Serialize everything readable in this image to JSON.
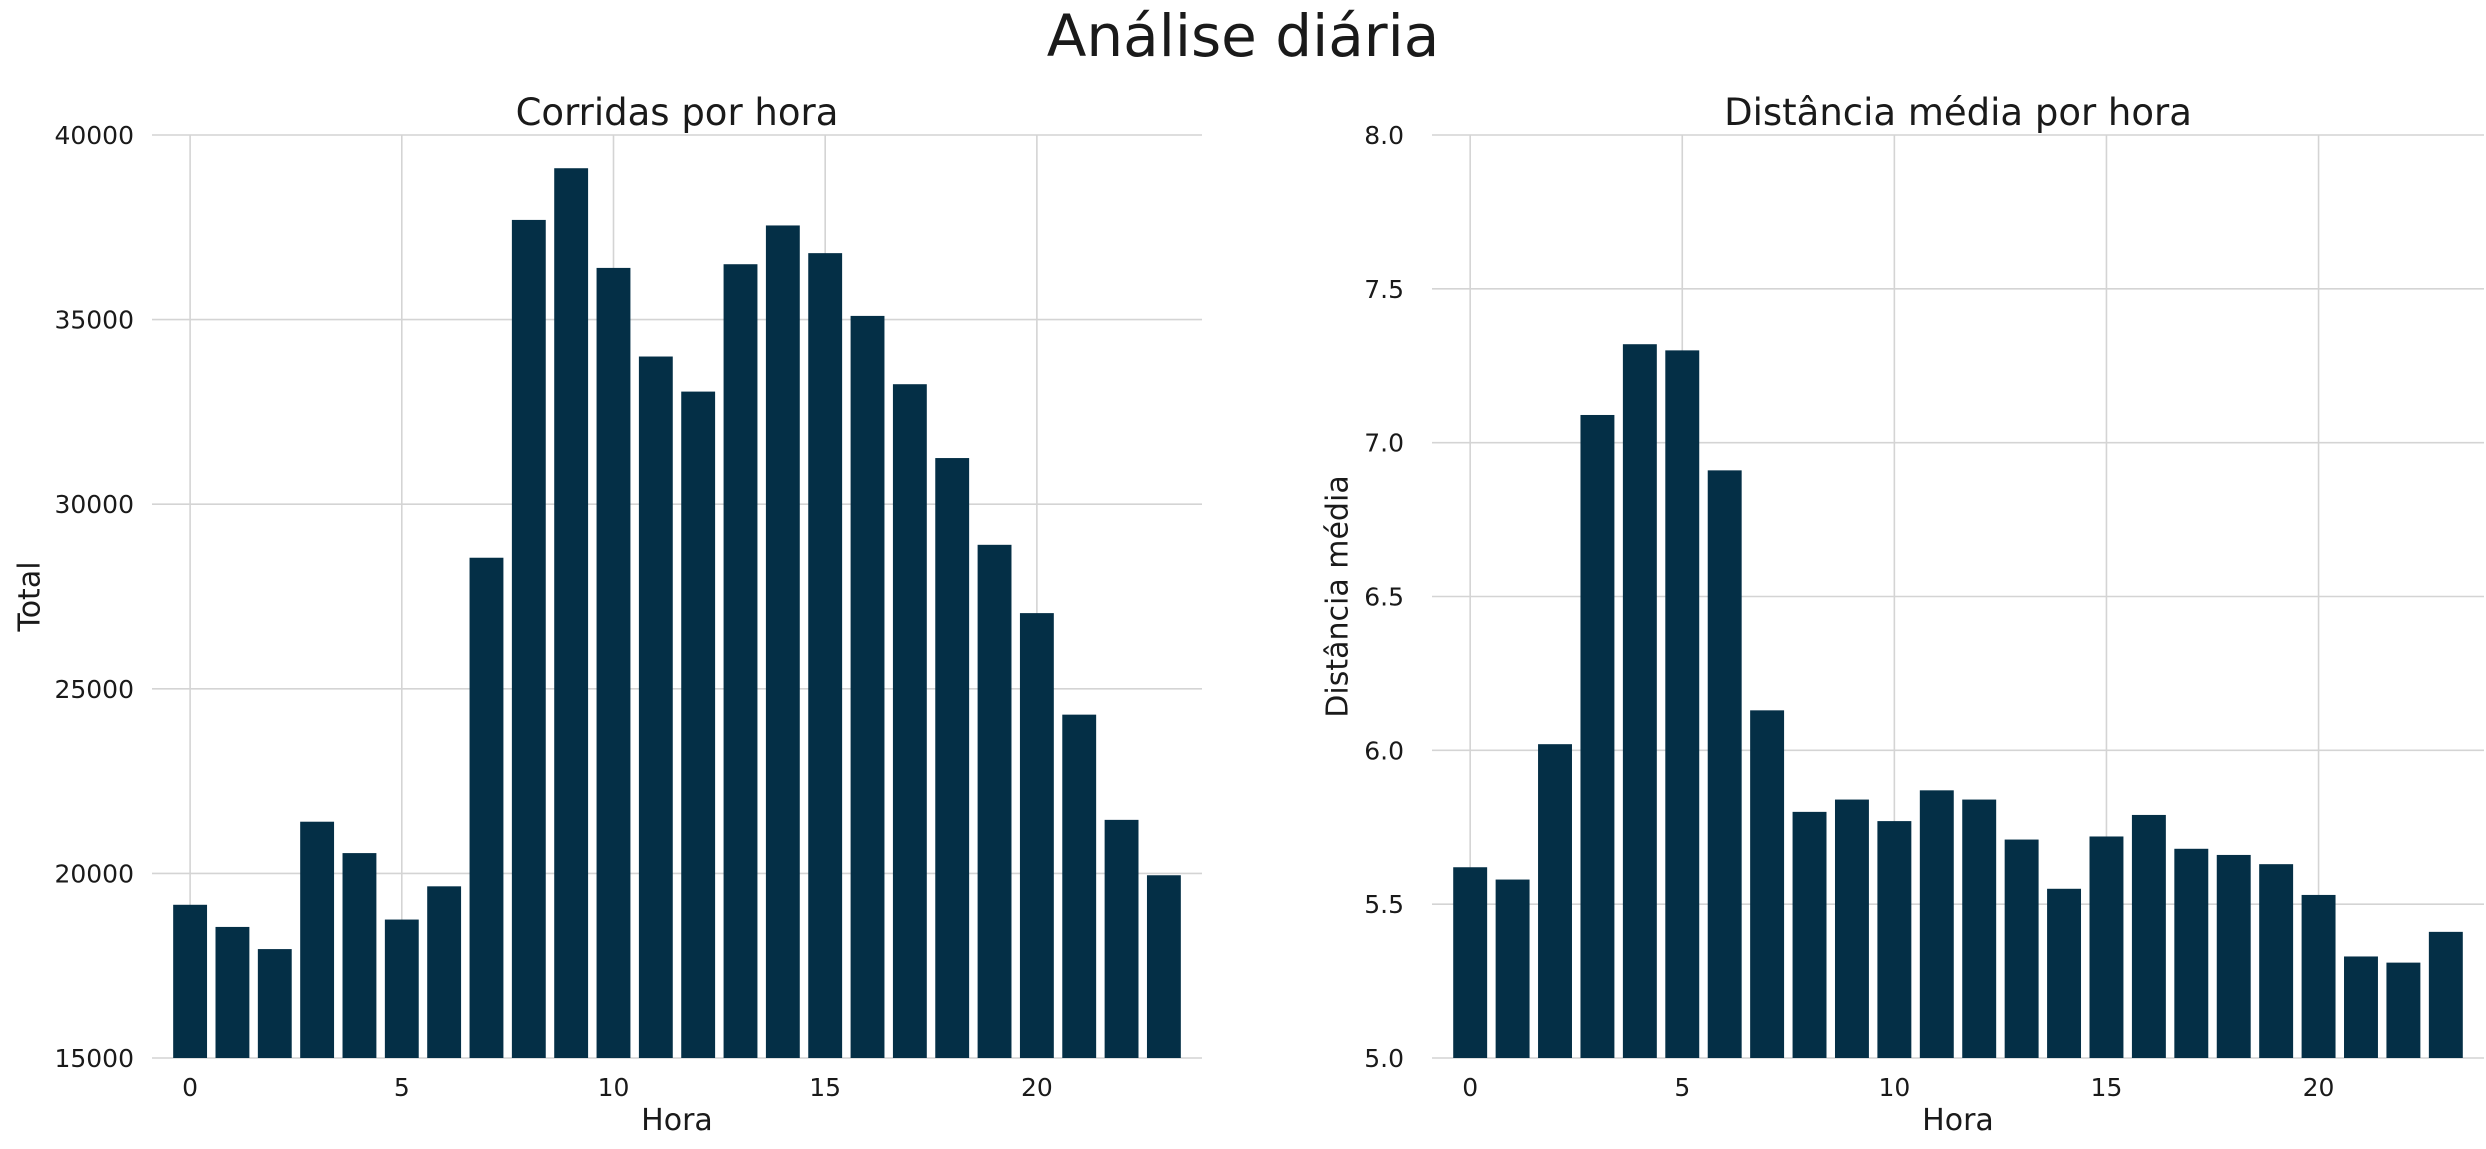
{
  "suptitle": "Análise diária",
  "chart_data": [
    {
      "type": "bar",
      "title": "Corridas por hora",
      "xlabel": "Hora",
      "ylabel": "Total",
      "x": [
        0,
        1,
        2,
        3,
        4,
        5,
        6,
        7,
        8,
        9,
        10,
        11,
        12,
        13,
        14,
        15,
        16,
        17,
        18,
        19,
        20,
        21,
        22,
        23
      ],
      "values": [
        19150,
        18550,
        17950,
        21400,
        20550,
        18750,
        19650,
        28550,
        37700,
        39100,
        36400,
        34000,
        33050,
        36500,
        37550,
        36800,
        35100,
        33250,
        31250,
        28900,
        27050,
        24300,
        21450,
        19950
      ],
      "ylim": [
        15000,
        40000
      ],
      "yticks": [
        "15000",
        "20000",
        "25000",
        "30000",
        "35000",
        "40000"
      ],
      "xticks": [
        "0",
        "5",
        "10",
        "15",
        "20"
      ],
      "grid": true,
      "bar_color": "#042f46"
    },
    {
      "type": "bar",
      "title": "Distância média por hora",
      "xlabel": "Hora",
      "ylabel": "Distância média",
      "x": [
        0,
        1,
        2,
        3,
        4,
        5,
        6,
        7,
        8,
        9,
        10,
        11,
        12,
        13,
        14,
        15,
        16,
        17,
        18,
        19,
        20,
        21,
        22,
        23
      ],
      "values": [
        5.62,
        5.58,
        6.02,
        7.09,
        7.32,
        7.3,
        6.91,
        6.13,
        5.8,
        5.84,
        5.77,
        5.87,
        5.84,
        5.71,
        5.55,
        5.72,
        5.79,
        5.68,
        5.66,
        5.63,
        5.53,
        5.33,
        5.31,
        5.41
      ],
      "ylim": [
        5.0,
        8.0
      ],
      "yticks": [
        "5.0",
        "5.5",
        "6.0",
        "6.5",
        "7.0",
        "7.5",
        "8.0"
      ],
      "xticks": [
        "0",
        "5",
        "10",
        "15",
        "20"
      ],
      "grid": true,
      "bar_color": "#042f46"
    }
  ]
}
